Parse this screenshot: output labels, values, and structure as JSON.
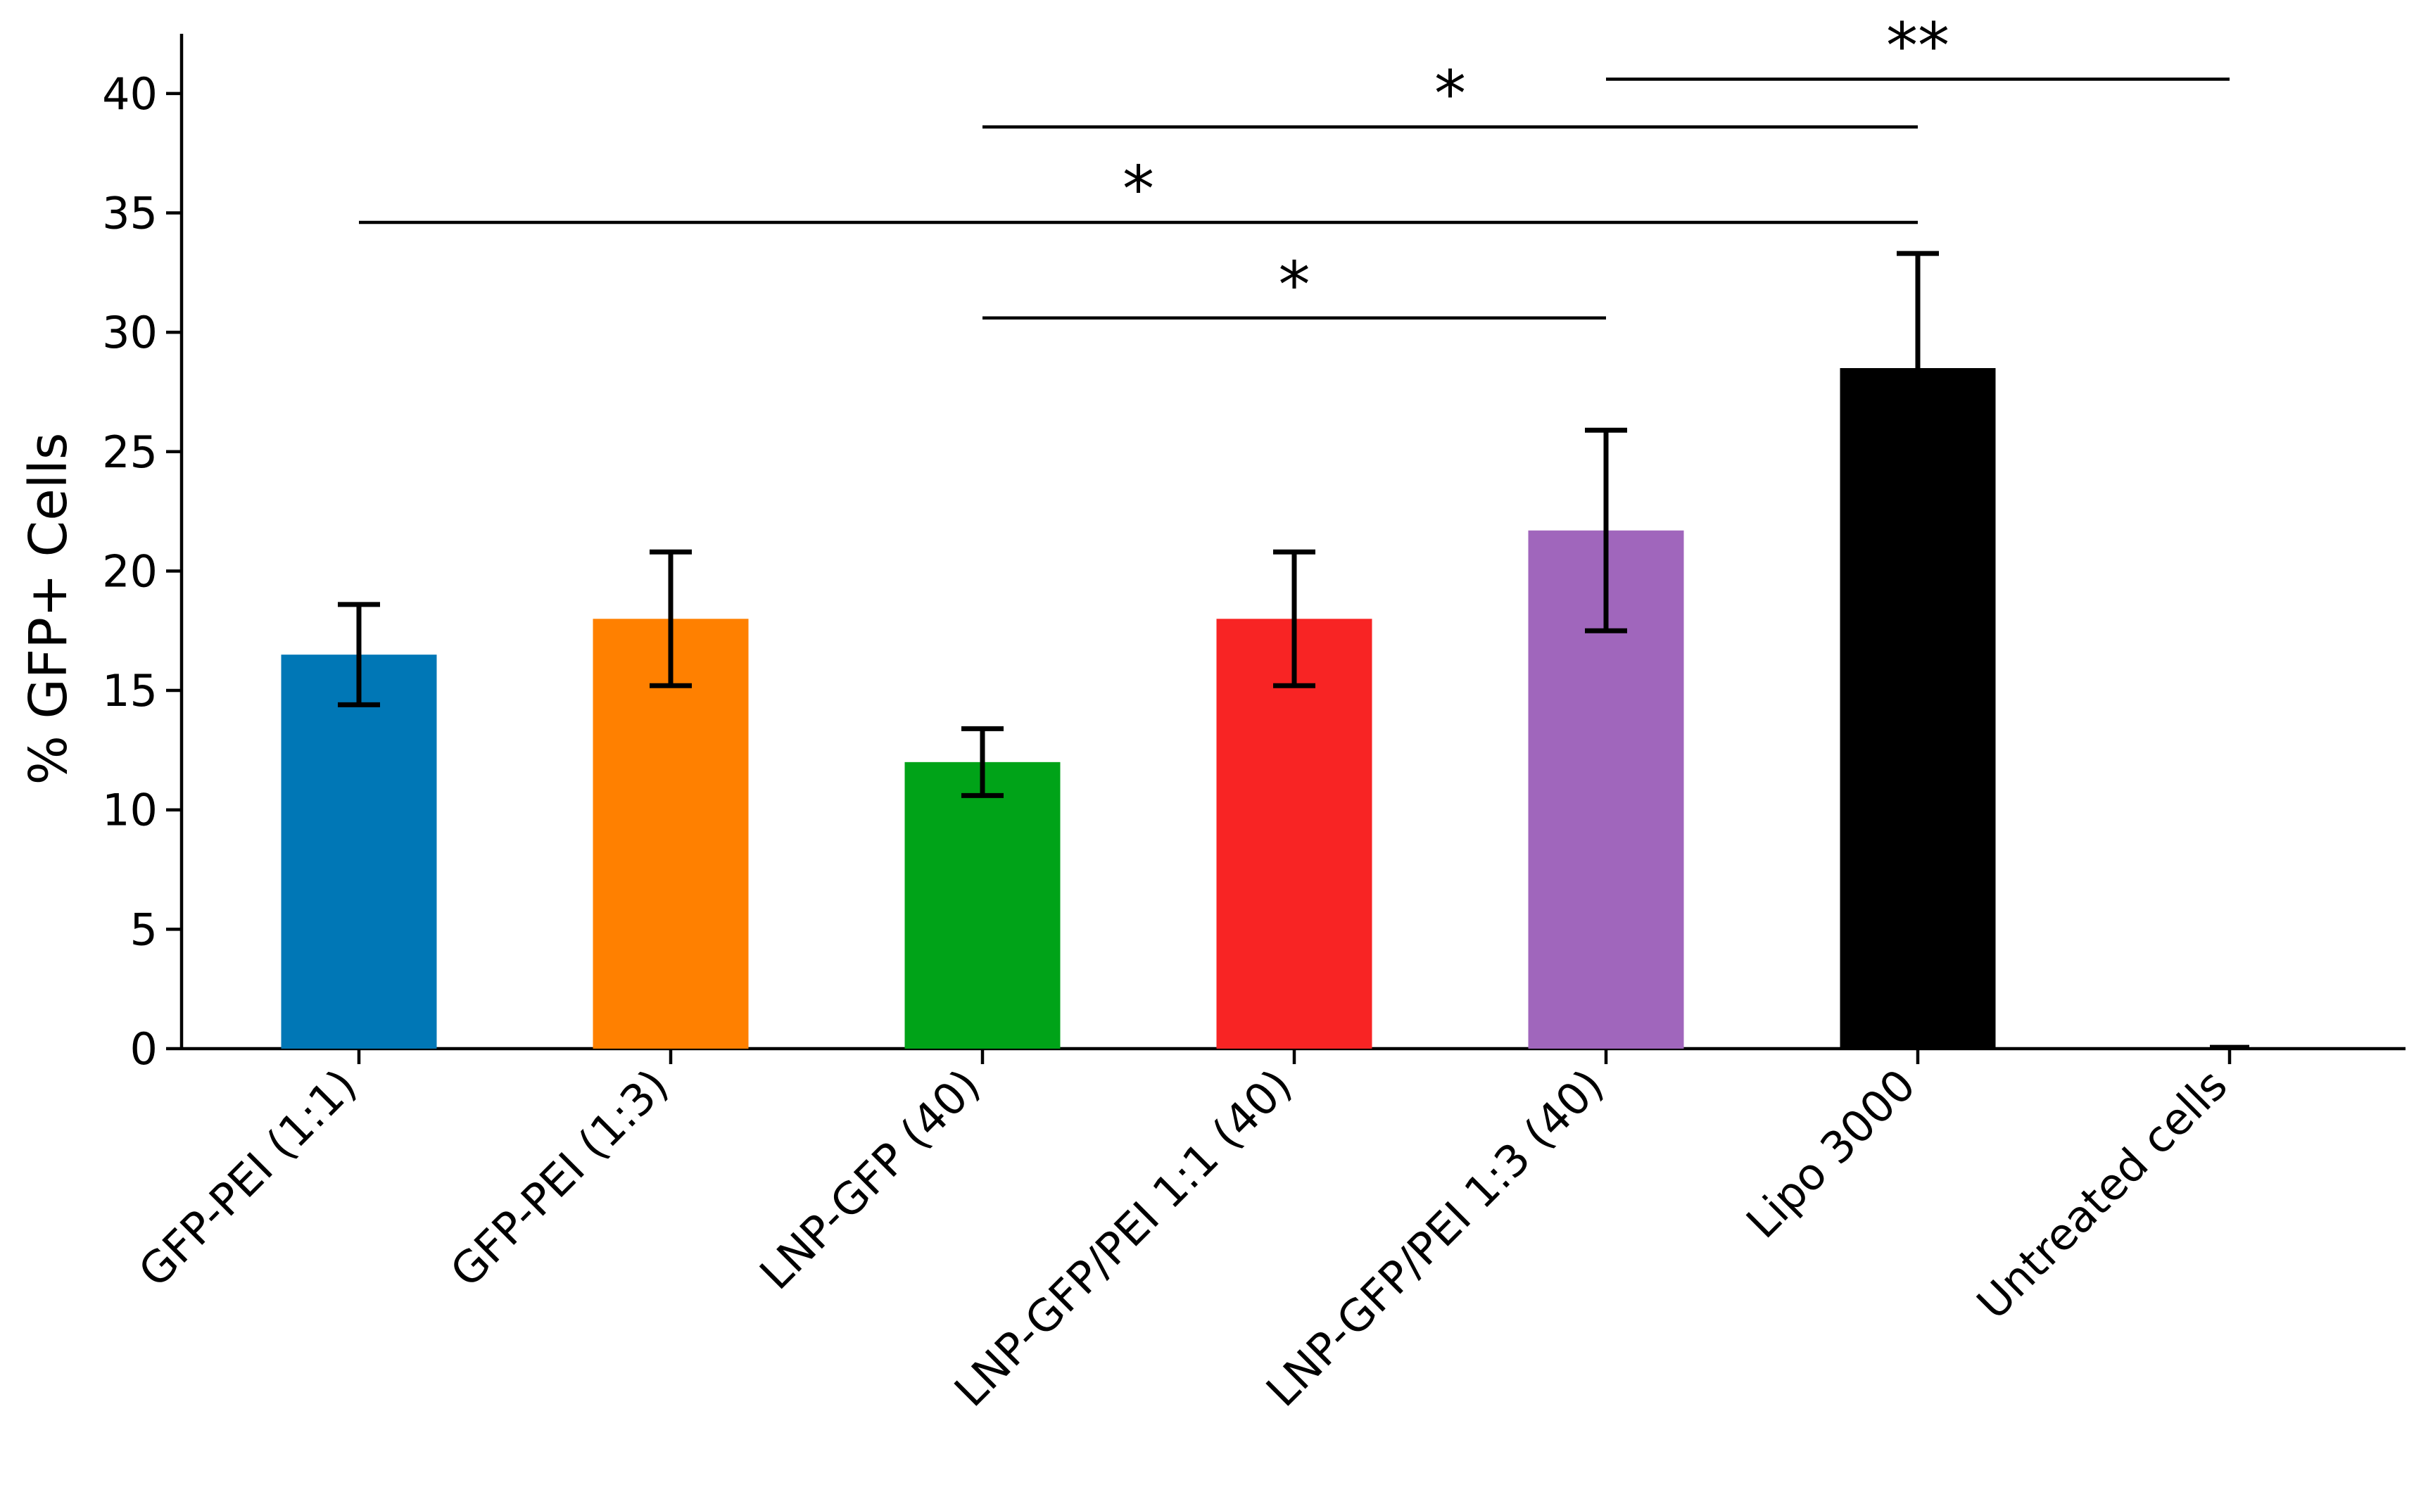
{
  "chart_data": {
    "type": "bar",
    "title": "",
    "xlabel": "",
    "ylabel": "% GFP+ Cells",
    "ylim": [
      0,
      42.5
    ],
    "yticks": [
      0,
      5,
      10,
      15,
      20,
      25,
      30,
      35,
      40
    ],
    "grid": false,
    "categories": [
      "GFP-PEI (1:1)",
      "GFP-PEI (1:3)",
      "LNP-GFP (40)",
      "LNP-GFP/PEI 1:1 (40)",
      "LNP-GFP/PEI 1:3 (40)",
      "Lipo 3000",
      "Untreated cells"
    ],
    "values": [
      16.5,
      18.0,
      12.0,
      18.0,
      21.7,
      28.5,
      0.1
    ],
    "errors": [
      2.1,
      2.8,
      1.4,
      2.8,
      4.2,
      4.8,
      0
    ],
    "colors": [
      "#0077b6",
      "#ff8000",
      "#00a318",
      "#f82424",
      "#a066bc",
      "#000000",
      "#000000"
    ],
    "significance": [
      {
        "from": 2,
        "to": 4,
        "y": 30.6,
        "label": "*"
      },
      {
        "from": 0,
        "to": 5,
        "y": 34.6,
        "label": "*"
      },
      {
        "from": 2,
        "to": 5,
        "y": 38.6,
        "label": "*"
      },
      {
        "from": 4,
        "to": 6,
        "y": 40.6,
        "label": "**"
      }
    ]
  }
}
